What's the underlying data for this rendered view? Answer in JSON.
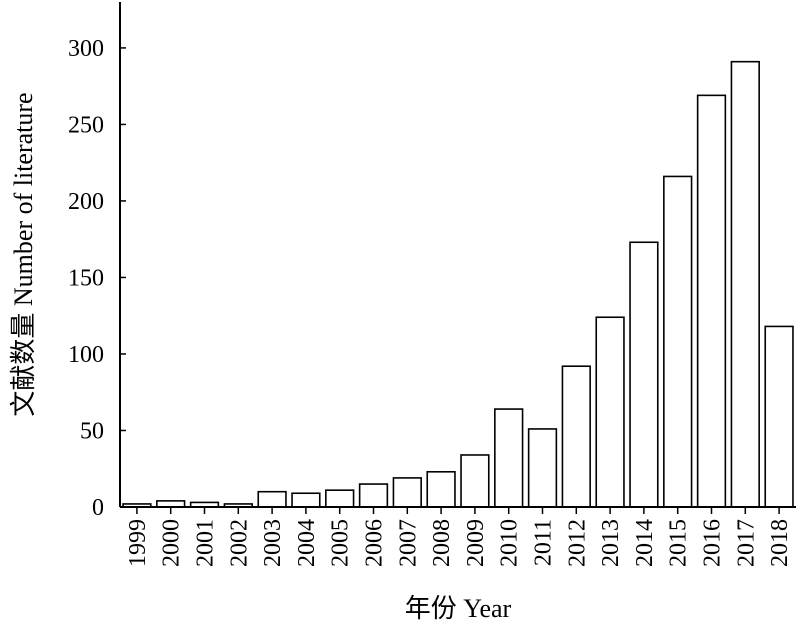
{
  "chart_data": {
    "type": "bar",
    "title": "",
    "xlabel": "年份 Year",
    "ylabel": "文献数量 Number of literature",
    "categories": [
      "1999",
      "2000",
      "2001",
      "2002",
      "2003",
      "2004",
      "2005",
      "2006",
      "2007",
      "2008",
      "2009",
      "2010",
      "2011",
      "2012",
      "2013",
      "2014",
      "2015",
      "2016",
      "2017",
      "2018"
    ],
    "values": [
      2,
      4,
      3,
      2,
      10,
      9,
      11,
      15,
      19,
      23,
      34,
      64,
      51,
      92,
      124,
      173,
      216,
      269,
      291,
      118
    ],
    "ylim": [
      0,
      330
    ],
    "yticks": [
      0,
      50,
      100,
      150,
      200,
      250,
      300
    ],
    "grid": false,
    "legend": "none",
    "colors": {
      "bar_fill": "#ffffff",
      "bar_stroke": "#000000",
      "axis": "#000000"
    }
  }
}
